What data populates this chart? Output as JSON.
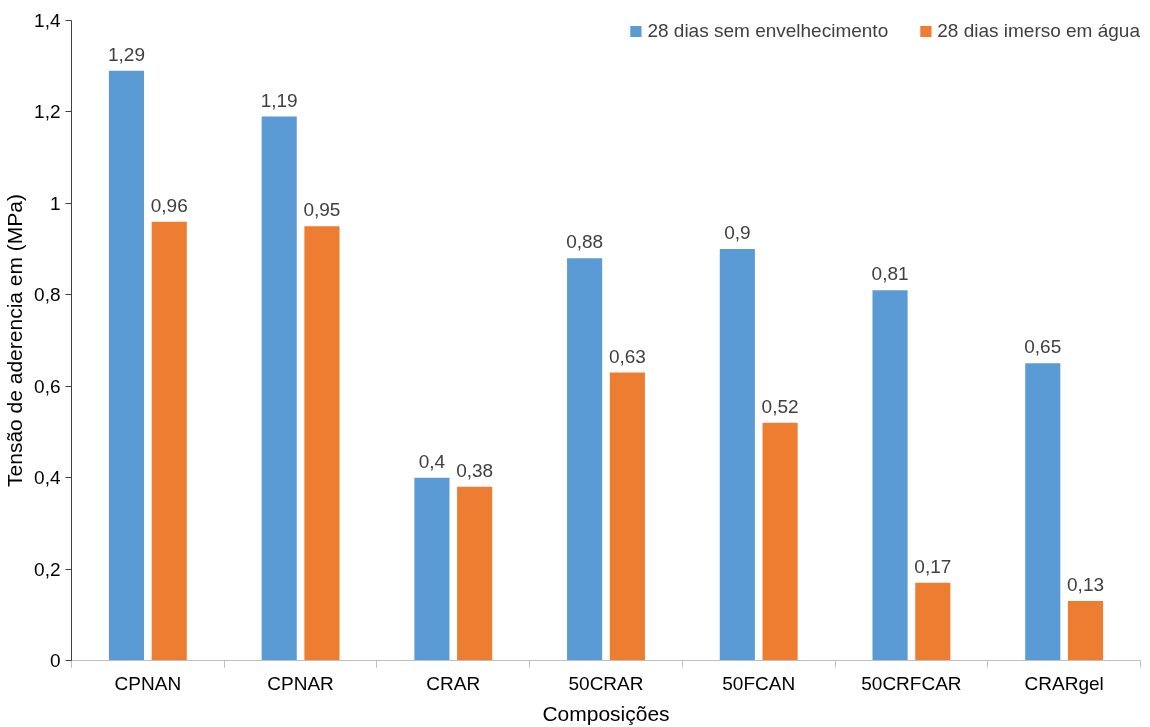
{
  "chart_data": {
    "type": "bar",
    "xlabel": "Composições",
    "ylabel": "Tensão de aderencia em (MPa)",
    "categories": [
      "CPNAN",
      "CPNAR",
      "CRAR",
      "50CRAR",
      "50FCAN",
      "50CRFCAR",
      "CRARgel"
    ],
    "series": [
      {
        "name": "28 dias sem envelhecimento",
        "color": "#5b9bd5",
        "values": [
          1.29,
          1.19,
          0.4,
          0.88,
          0.9,
          0.81,
          0.65
        ],
        "value_labels": [
          "1,29",
          "1,19",
          "0,4",
          "0,88",
          "0,9",
          "0,81",
          "0,65"
        ]
      },
      {
        "name": "28 dias imerso em água",
        "color": "#ed7d31",
        "values": [
          0.96,
          0.95,
          0.38,
          0.63,
          0.52,
          0.17,
          0.13
        ],
        "value_labels": [
          "0,96",
          "0,95",
          "0,38",
          "0,63",
          "0,52",
          "0,17",
          "0,13"
        ]
      }
    ],
    "ylim": [
      0,
      1.4
    ],
    "yticks": [
      0,
      {
        "value": 0.2,
        "label": "0,2"
      },
      {
        "value": 0.4,
        "label": "0,4"
      },
      {
        "value": 0.6,
        "label": "0,6"
      },
      {
        "value": 0.8,
        "label": "0,8"
      },
      1,
      {
        "value": 1.2,
        "label": "1,2"
      },
      {
        "value": 1.4,
        "label": "1,4"
      }
    ],
    "grid": false,
    "legend": "top right"
  }
}
